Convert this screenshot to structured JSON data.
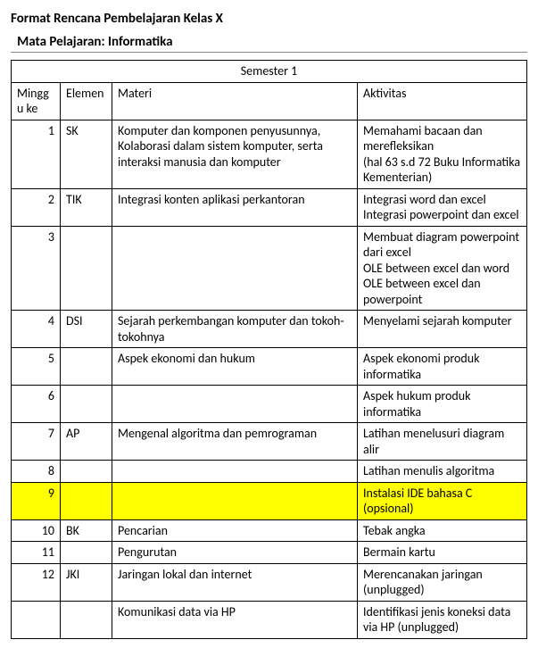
{
  "doc": {
    "title": "Format Rencana Pembelajaran Kelas X",
    "subtitle": "Mata Pelajaran: Informatika"
  },
  "table": {
    "semester_header": "Semester 1",
    "headers": {
      "week": "Minggu ke",
      "element": "Elemen",
      "material": "Materi",
      "activity": "Aktivitas"
    },
    "col_widths": {
      "week": 55,
      "element": 58,
      "material": 275
    },
    "highlight_row_index": 8,
    "highlight_color": "#ffff00",
    "border_color": "#000000",
    "background_color": "#ffffff",
    "font_family": "Calibri",
    "font_size_pt": 11,
    "rows": [
      {
        "week": "1",
        "element": "SK",
        "material": "Komputer dan komponen penyusunnya, Kolaborasi dalam sistem komputer, serta interaksi manusia dan komputer",
        "activity": "Memahami bacaan dan merefleksikan\n(hal 63 s.d 72 Buku Informatika Kementerian)"
      },
      {
        "week": "2",
        "element": "TIK",
        "material": "Integrasi konten aplikasi perkantoran",
        "activity": "Integrasi word dan excel\nIntegrasi powerpoint dan excel"
      },
      {
        "week": "3",
        "element": "",
        "material": "",
        "activity": "Membuat diagram powerpoint dari excel\nOLE between excel dan word\nOLE between excel dan powerpoint"
      },
      {
        "week": "4",
        "element": "DSI",
        "material": "Sejarah perkembangan komputer dan tokoh-tokohnya",
        "activity": "Menyelami sejarah komputer"
      },
      {
        "week": "5",
        "element": "",
        "material": "Aspek ekonomi dan hukum",
        "activity": "Aspek ekonomi produk informatika"
      },
      {
        "week": "6",
        "element": "",
        "material": "",
        "activity": "Aspek hukum produk informatika"
      },
      {
        "week": "7",
        "element": "AP",
        "material": "Mengenal algoritma dan pemrograman",
        "activity": "Latihan menelusuri diagram alir"
      },
      {
        "week": "8",
        "element": "",
        "material": "",
        "activity": "Latihan menulis algoritma"
      },
      {
        "week": "9",
        "element": "",
        "material": "",
        "activity": "Instalasi IDE bahasa C (opsional)"
      },
      {
        "week": "10",
        "element": "BK",
        "material": "Pencarian",
        "activity": "Tebak angka"
      },
      {
        "week": "11",
        "element": "",
        "material": "Pengurutan",
        "activity": "Bermain kartu"
      },
      {
        "week": "12",
        "element": "JKI",
        "material": "Jaringan lokal dan internet",
        "activity": "Merencanakan jaringan (unplugged)"
      },
      {
        "week": "",
        "element": "",
        "material": "Komunikasi data via HP",
        "activity": "Identifikasi jenis koneksi data via HP (unplugged)"
      }
    ]
  }
}
